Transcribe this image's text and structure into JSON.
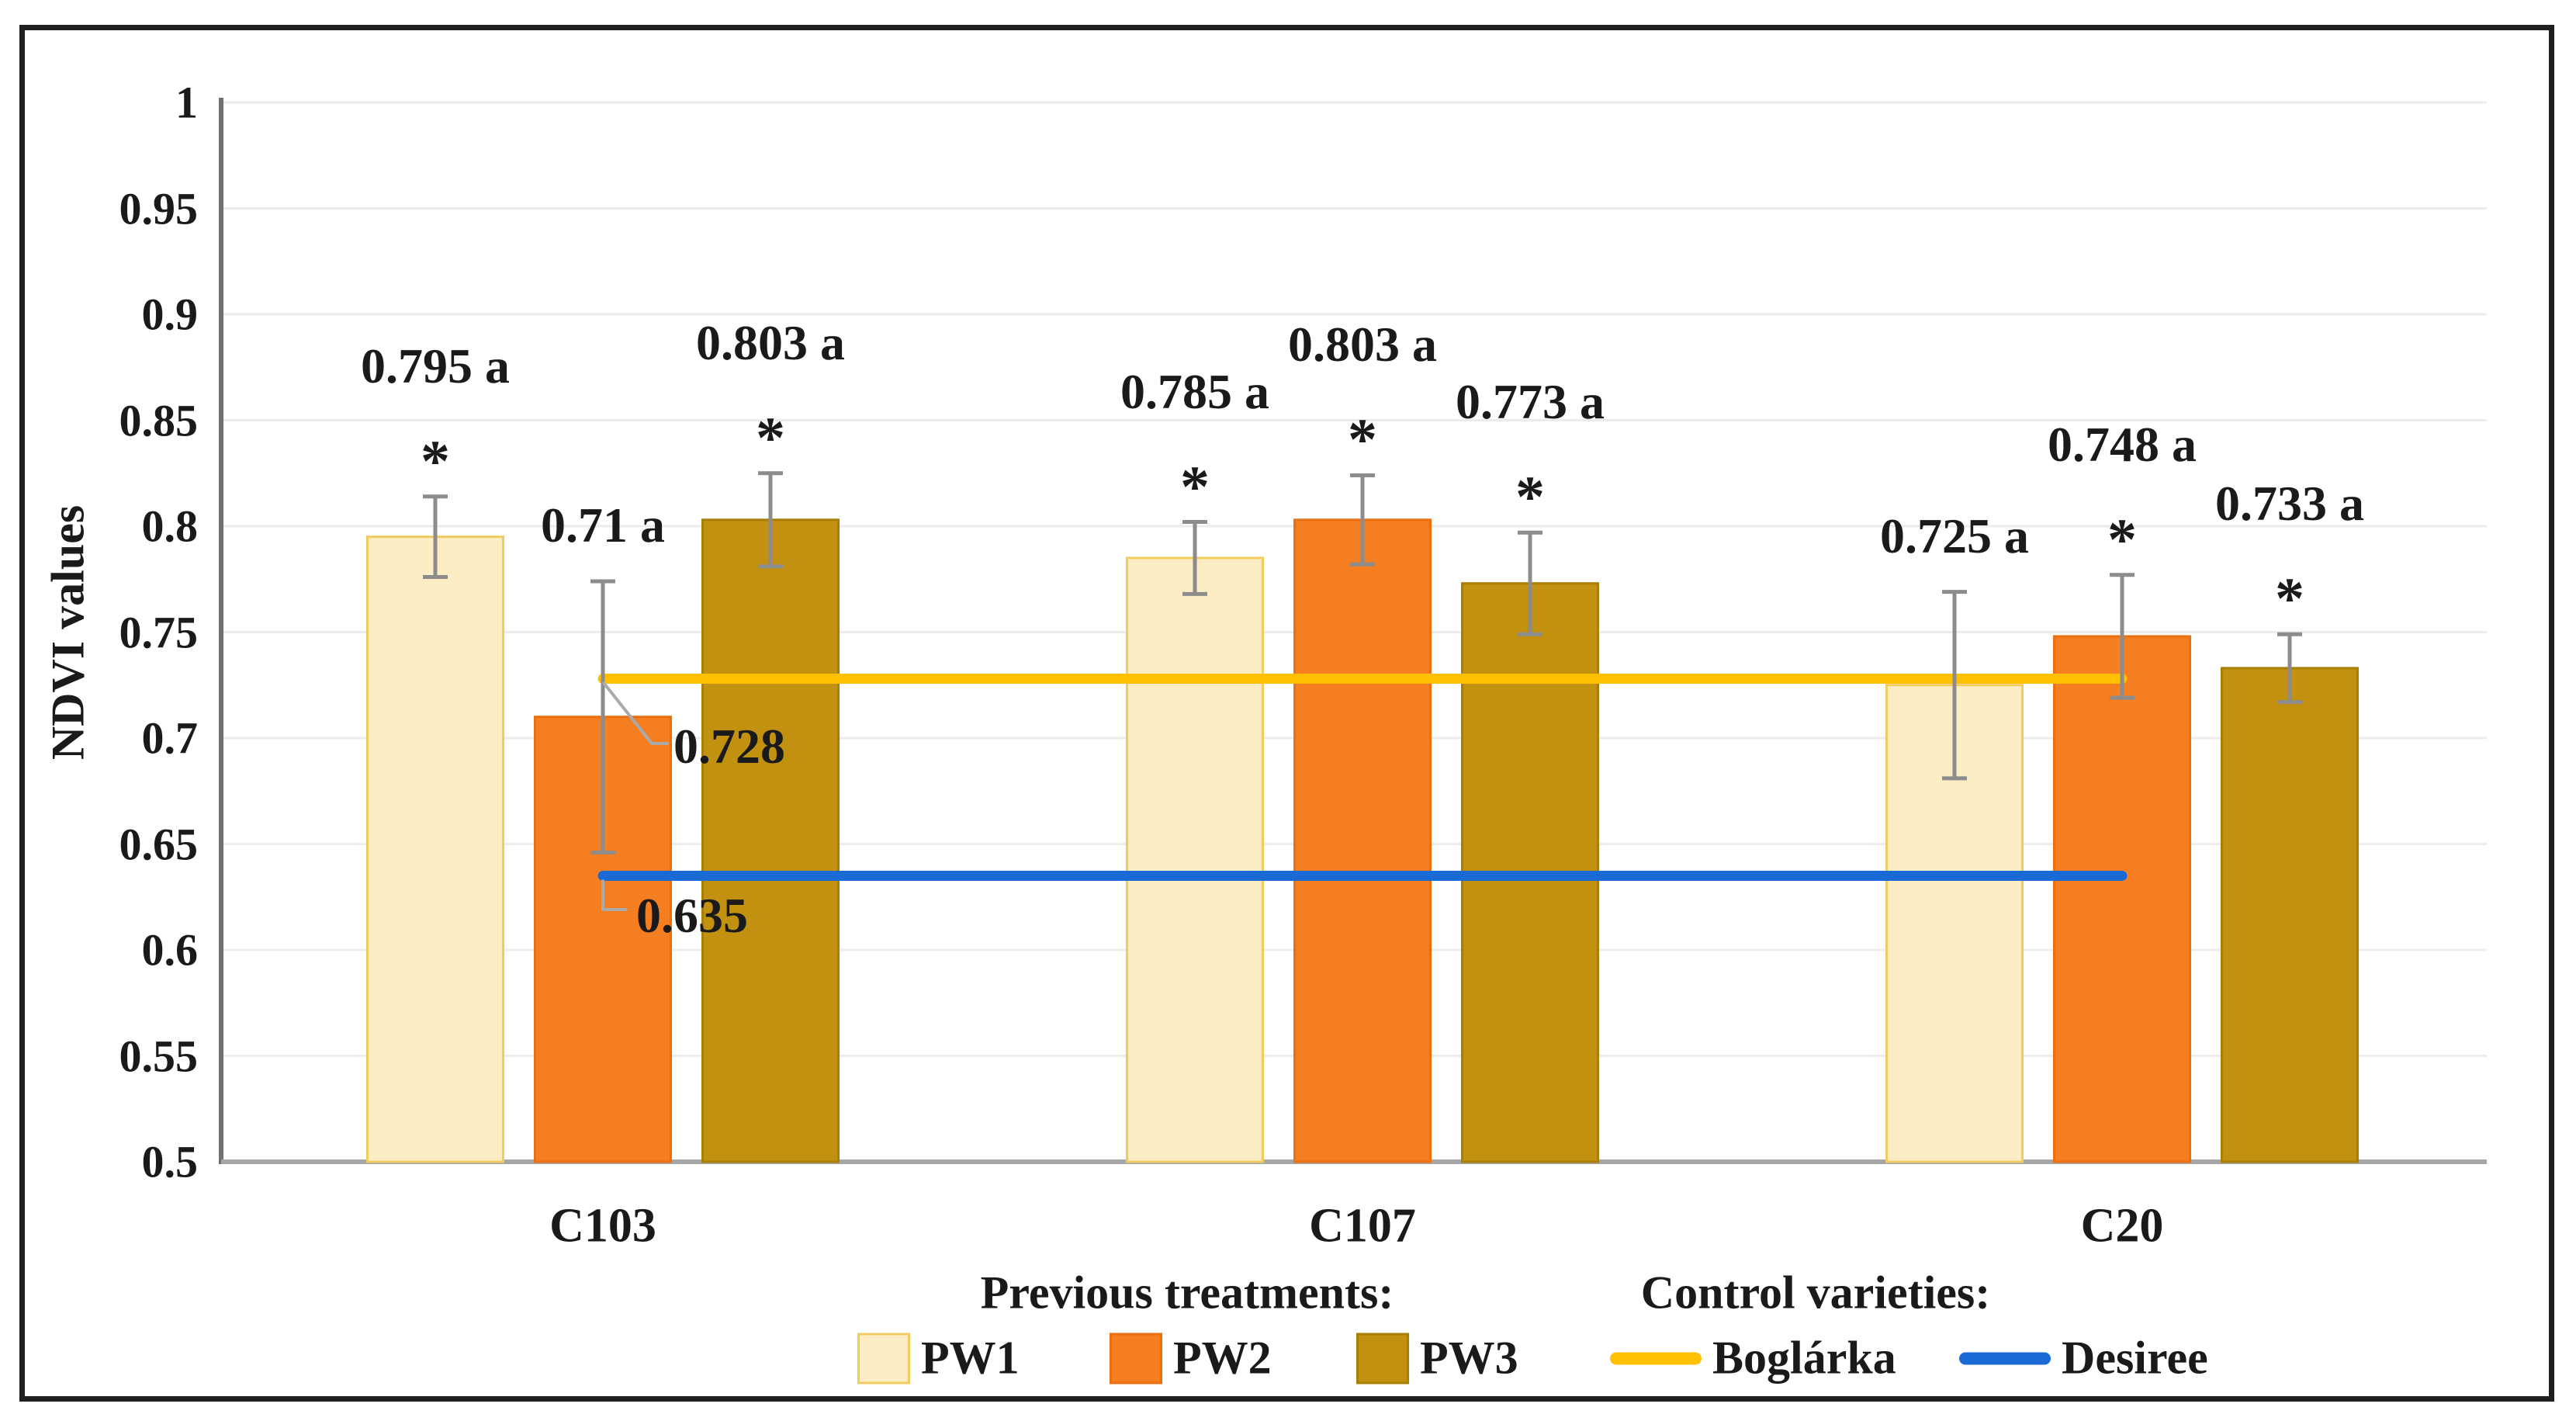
{
  "figure": {
    "background": "#ffffff",
    "border_color": "#1f1f1f"
  },
  "colors": {
    "grid": "#ececec",
    "y_axis_line": "#707070",
    "x_axis_line": "#a6a6a6",
    "error_bar": "#8c8c8c",
    "callout_leader": "#aaaaaa",
    "text": "#1a1a1a",
    "pw1_fill": "#FCEDC4",
    "pw1_border": "#F2CB5F",
    "pw2_fill": "#F57E21",
    "pw2_border": "#E87012",
    "pw3_fill": "#C39110",
    "pw3_border": "#A87E04",
    "boglarka_line": "#FFC003",
    "desiree_line": "#1A6AD6"
  },
  "chart_data": {
    "type": "bar",
    "title": "",
    "xlabel": "",
    "ylabel": "NDVI values",
    "ylim": [
      0.5,
      1.0
    ],
    "grid": true,
    "legend_position": "bottom-center",
    "significance_marker": "*",
    "yticks": [
      {
        "label": "1",
        "value": 1.0
      },
      {
        "label": "0.95",
        "value": 0.95
      },
      {
        "label": "0.9",
        "value": 0.9
      },
      {
        "label": "0.85",
        "value": 0.85
      },
      {
        "label": "0.8",
        "value": 0.8
      },
      {
        "label": "0.75",
        "value": 0.75
      },
      {
        "label": "0.7",
        "value": 0.7
      },
      {
        "label": "0.65",
        "value": 0.65
      },
      {
        "label": "0.6",
        "value": 0.6
      },
      {
        "label": "0.55",
        "value": 0.55
      },
      {
        "label": "0.5",
        "value": 0.5
      }
    ],
    "categories": [
      "C103",
      "C107",
      "C20"
    ],
    "series": [
      {
        "name": "PW1",
        "values": [
          0.795,
          0.785,
          0.725
        ],
        "data_labels": [
          "0.795 a",
          "0.785 a",
          "0.725 a"
        ],
        "errors": [
          0.019,
          0.017,
          0.044
        ],
        "asterisk": [
          true,
          true,
          false
        ]
      },
      {
        "name": "PW2",
        "values": [
          0.71,
          0.803,
          0.748
        ],
        "data_labels": [
          "0.71 a",
          "0.803 a",
          "0.748 a"
        ],
        "errors": [
          0.064,
          0.021,
          0.029
        ],
        "asterisk": [
          false,
          true,
          true
        ]
      },
      {
        "name": "PW3",
        "values": [
          0.803,
          0.773,
          0.733
        ],
        "data_labels": [
          "0.803 a",
          "0.773 a",
          "0.733 a"
        ],
        "errors": [
          0.022,
          0.024,
          0.016
        ],
        "asterisk": [
          true,
          true,
          true
        ]
      }
    ],
    "reference_lines": [
      {
        "name": "Boglárka",
        "value": 0.728,
        "data_label": "0.728"
      },
      {
        "name": "Desiree",
        "value": 0.635,
        "data_label": "0.635"
      }
    ],
    "legend": {
      "group1_title": "Previous treatments:",
      "group2_title": "Control varieties:",
      "bar_items": [
        "PW1",
        "PW2",
        "PW3"
      ],
      "line_items": [
        "Boglárka",
        "Desiree"
      ]
    }
  }
}
